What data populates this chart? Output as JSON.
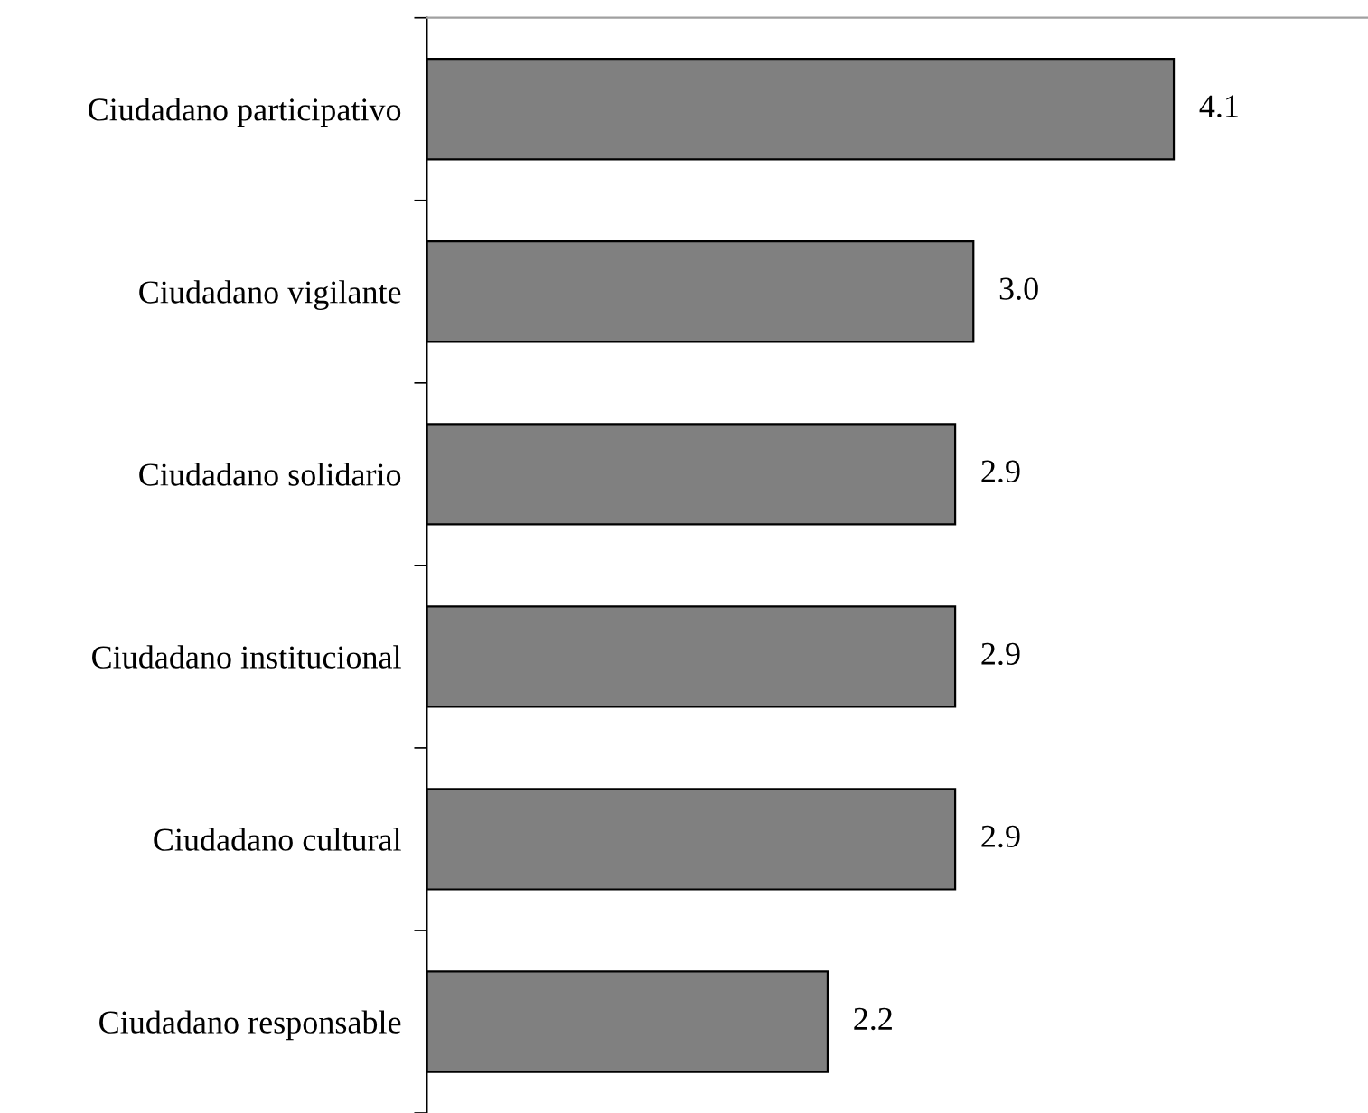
{
  "chart_data": {
    "type": "bar",
    "orientation": "horizontal",
    "categories": [
      "Ciudadano participativo",
      "Ciudadano vigilante",
      "Ciudadano solidario",
      "Ciudadano institucional",
      "Ciudadano cultural",
      "Ciudadano responsable"
    ],
    "values": [
      4.1,
      3.0,
      2.9,
      2.9,
      2.9,
      2.2
    ],
    "value_labels": [
      "4.1",
      "3.0",
      "2.9",
      "2.9",
      "2.9",
      "2.2"
    ],
    "color": "#808080",
    "grid": false,
    "legend": false,
    "tick_labels": "y"
  }
}
